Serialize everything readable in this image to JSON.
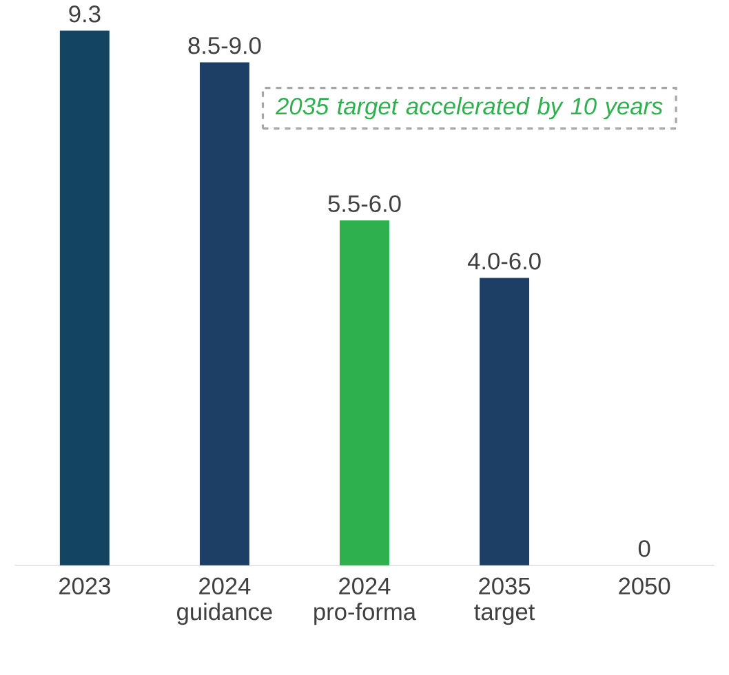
{
  "chart_data": {
    "type": "bar",
    "categories": [
      "2023",
      "2024 guidance",
      "2024 pro-forma",
      "2035 target",
      "2050"
    ],
    "values": [
      9.3,
      8.75,
      6.0,
      5.0,
      0
    ],
    "value_labels": [
      "9.3",
      "8.5-9.0",
      "5.5-6.0",
      "4.0-6.0",
      "0"
    ],
    "colors": [
      "#134563",
      "#1d3f66",
      "#2fb04f",
      "#1d3f66",
      "#1d3f66"
    ],
    "annotations": [
      "2035 target accelerated by 10 years"
    ]
  }
}
